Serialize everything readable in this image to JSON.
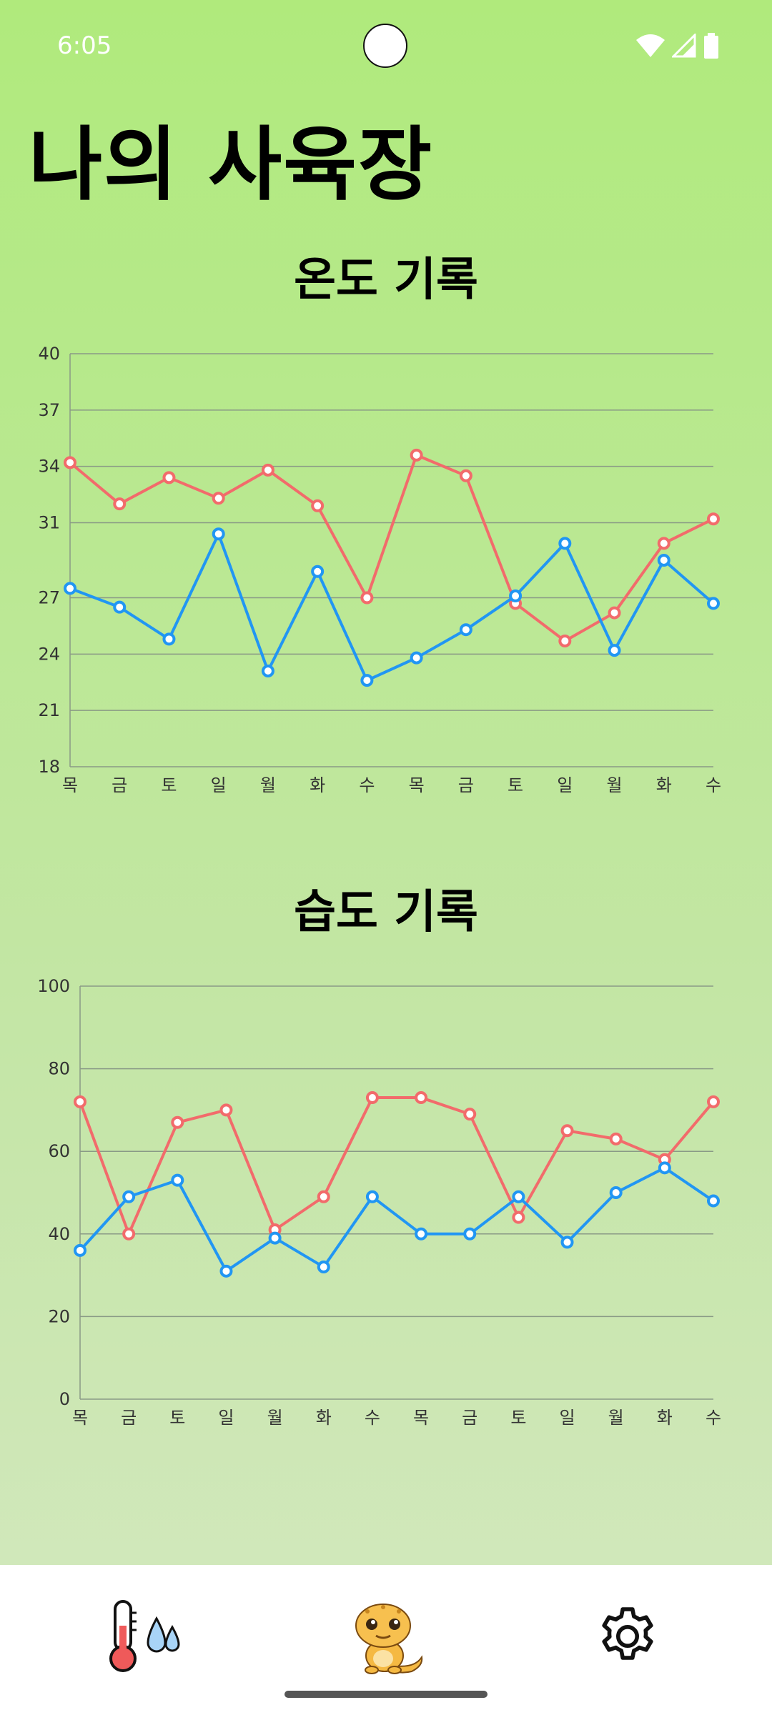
{
  "status": {
    "time": "6:05"
  },
  "page": {
    "title": "나의 사육장"
  },
  "charts": {
    "temperature": {
      "title": "온도 기록",
      "chart_data": {
        "type": "line",
        "title": "온도 기록",
        "categories": [
          "목",
          "금",
          "토",
          "일",
          "월",
          "화",
          "수",
          "목",
          "금",
          "토",
          "일",
          "월",
          "화",
          "수"
        ],
        "y_ticks": [
          18,
          21,
          24,
          27,
          31,
          34,
          37,
          40
        ],
        "ylim": [
          18,
          40
        ],
        "grid": true,
        "series": [
          {
            "color": "#f26b6b",
            "values": [
              34.2,
              32.0,
              33.4,
              32.3,
              33.8,
              31.9,
              27.0,
              34.6,
              33.5,
              26.7,
              24.7,
              26.2,
              29.9,
              31.2
            ]
          },
          {
            "color": "#2196f3",
            "values": [
              27.5,
              26.5,
              24.8,
              30.4,
              23.1,
              28.4,
              22.6,
              23.8,
              25.3,
              27.1,
              29.9,
              24.2,
              29.0,
              26.7
            ]
          }
        ]
      }
    },
    "humidity": {
      "title": "습도 기록",
      "chart_data": {
        "type": "line",
        "title": "습도 기록",
        "categories": [
          "목",
          "금",
          "토",
          "일",
          "월",
          "화",
          "수",
          "목",
          "금",
          "토",
          "일",
          "월",
          "화",
          "수"
        ],
        "y_ticks": [
          0,
          20,
          40,
          60,
          80,
          100
        ],
        "ylim": [
          0,
          100
        ],
        "grid": true,
        "series": [
          {
            "color": "#f26b6b",
            "values": [
              72,
              40,
              67,
              70,
              41,
              49,
              73,
              73,
              69,
              44,
              65,
              63,
              58,
              72
            ]
          },
          {
            "color": "#2196f3",
            "values": [
              36,
              49,
              53,
              31,
              39,
              32,
              49,
              40,
              40,
              49,
              38,
              50,
              56,
              48
            ]
          }
        ]
      }
    }
  },
  "nav": {
    "items": [
      {
        "icon": "thermometer-droplets-icon"
      },
      {
        "icon": "gecko-icon"
      },
      {
        "icon": "gear-icon"
      }
    ]
  }
}
